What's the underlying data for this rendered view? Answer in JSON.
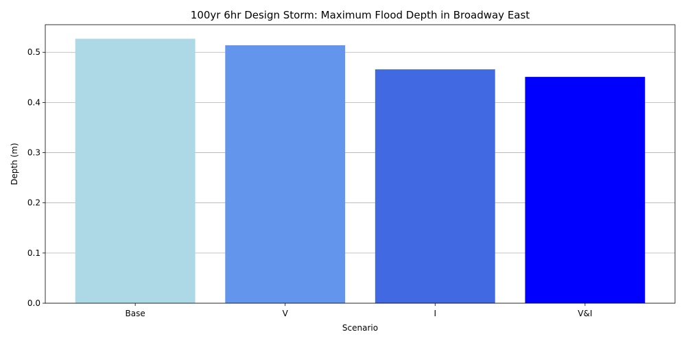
{
  "chart_data": {
    "type": "bar",
    "title": "100yr 6hr Design Storm: Maximum Flood Depth in Broadway East",
    "xlabel": "Scenario",
    "ylabel": "Depth (m)",
    "categories": [
      "Base",
      "V",
      "I",
      "V&I"
    ],
    "values": [
      0.527,
      0.514,
      0.466,
      0.451
    ],
    "colors": [
      "#add8e6",
      "#6495ed",
      "#4169e1",
      "#0000ff"
    ],
    "ylim": [
      0,
      0.555
    ],
    "yticks": [
      0.0,
      0.1,
      0.2,
      0.3,
      0.4,
      0.5
    ],
    "ytick_labels": [
      "0.0",
      "0.1",
      "0.2",
      "0.3",
      "0.4",
      "0.5"
    ],
    "grid": "y-major",
    "legend": "none"
  }
}
